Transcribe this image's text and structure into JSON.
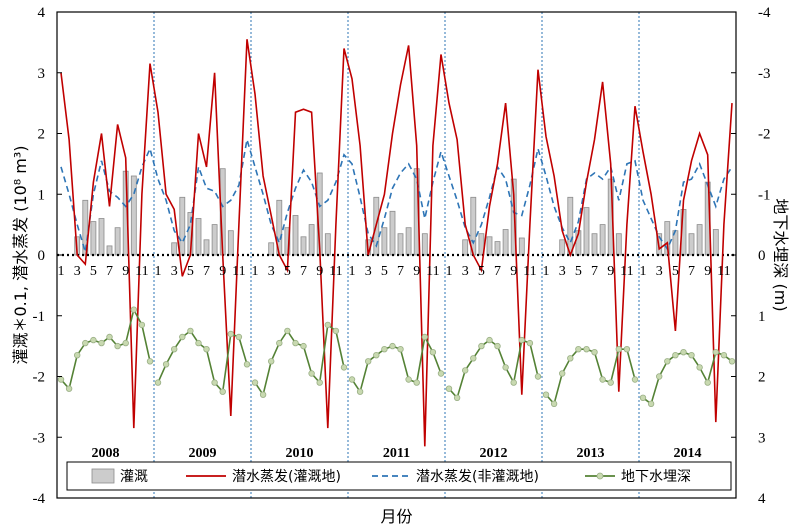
{
  "chart_data": {
    "type": "bar+line",
    "xlabel": "月份",
    "ylabel_left": "灌溉＊0.1,   潜水蒸发 (10⁸ m³)",
    "ylabel_right": "地下水埋深 (m)",
    "ylim_left": [
      -4,
      4
    ],
    "ylim_right": [
      4,
      -4
    ],
    "left_ticks": [
      "4",
      "3",
      "2",
      "1",
      "0",
      "-1",
      "-2",
      "-3",
      "-4"
    ],
    "right_ticks": [
      "-4",
      "-3",
      "-2",
      "-1",
      "0",
      "1",
      "2",
      "3",
      "4"
    ],
    "years": [
      "2008",
      "2009",
      "2010",
      "2011",
      "2012",
      "2013",
      "2014"
    ],
    "month_ticks": [
      "1",
      "3",
      "5",
      "7",
      "9",
      "11"
    ],
    "colors": {
      "irrigation": "#cccccc",
      "evap_irrigated": "#c00000",
      "evap_non_irrigated": "#2e75b6",
      "groundwater": "#548235",
      "groundwater_marker": "#c8d9b0"
    },
    "series": [
      {
        "name": "灌溉",
        "kind": "bar",
        "values": [
          [
            0,
            0,
            0.3,
            0.9,
            0.55,
            0.6,
            0.15,
            0.45,
            1.38,
            1.3,
            0,
            0
          ],
          [
            0,
            0,
            0.2,
            0.95,
            0.7,
            0.6,
            0.25,
            0.5,
            1.42,
            0.4,
            0,
            0
          ],
          [
            0,
            0,
            0.2,
            0.9,
            0.45,
            0.65,
            0.3,
            0.5,
            1.35,
            0.35,
            0,
            0
          ],
          [
            0,
            0,
            0.25,
            0.95,
            0.45,
            0.72,
            0.35,
            0.45,
            1.42,
            0.35,
            0,
            0
          ],
          [
            0,
            0,
            0.25,
            0.95,
            0.35,
            0.3,
            0.22,
            0.42,
            1.25,
            0.28,
            0,
            0
          ],
          [
            0,
            0,
            0.25,
            0.95,
            0.4,
            0.78,
            0.35,
            0.5,
            1.25,
            0.35,
            0,
            0
          ],
          [
            0,
            0,
            0.35,
            0.55,
            0.4,
            0.75,
            0.35,
            0.5,
            1.2,
            0.42,
            0,
            0
          ]
        ]
      },
      {
        "name": "潜水蒸发(灌溉地)",
        "kind": "line",
        "values": [
          [
            3.0,
            1.9,
            0.0,
            -0.15,
            1.2,
            2.0,
            0.8,
            2.15,
            1.6,
            -2.85,
            1.0,
            3.15
          ],
          [
            2.35,
            1.0,
            0.75,
            -0.35,
            0.0,
            2.0,
            1.45,
            3.0,
            0.0,
            -2.65,
            0.5,
            3.55
          ],
          [
            2.65,
            1.3,
            0.65,
            0.0,
            -0.25,
            2.35,
            2.4,
            2.35,
            0.1,
            -2.85,
            0.5,
            3.4
          ],
          [
            2.9,
            1.8,
            0.0,
            0.5,
            1.0,
            2.0,
            2.8,
            3.45,
            1.8,
            -3.15,
            1.8,
            3.3
          ],
          [
            2.5,
            1.9,
            0.5,
            0.0,
            -0.25,
            0.8,
            1.5,
            2.5,
            1.0,
            -2.3,
            0.5,
            3.05
          ],
          [
            1.95,
            1.3,
            0.4,
            0.0,
            0.35,
            1.2,
            1.9,
            2.85,
            1.5,
            -2.25,
            0.5,
            2.45
          ],
          [
            1.7,
            1.0,
            0.1,
            0.2,
            -1.25,
            0.9,
            1.55,
            2.0,
            1.65,
            -2.75,
            0.5,
            2.5
          ]
        ]
      },
      {
        "name": "潜水蒸发(非灌溉地)",
        "kind": "dashed-line",
        "values": [
          [
            1.45,
            1.0,
            0.5,
            0.05,
            1.0,
            1.55,
            1.05,
            0.95,
            0.8,
            1.0,
            1.45,
            1.75
          ],
          [
            1.25,
            0.9,
            0.4,
            0.2,
            0.5,
            1.45,
            1.1,
            1.05,
            0.8,
            0.9,
            1.15,
            1.9
          ],
          [
            1.45,
            1.0,
            0.5,
            0.2,
            0.7,
            1.1,
            1.4,
            1.2,
            0.8,
            0.9,
            1.2,
            1.65
          ],
          [
            1.5,
            0.95,
            0.35,
            0.15,
            0.6,
            1.1,
            1.35,
            1.5,
            1.25,
            0.6,
            1.2,
            1.7
          ],
          [
            1.3,
            0.9,
            0.45,
            0.2,
            0.5,
            0.95,
            1.45,
            1.25,
            0.7,
            0.65,
            1.15,
            1.75
          ],
          [
            1.3,
            0.8,
            0.45,
            0.2,
            0.55,
            1.25,
            1.35,
            1.25,
            1.45,
            0.9,
            1.5,
            1.55
          ],
          [
            0.9,
            0.6,
            0.3,
            0.1,
            0.4,
            1.2,
            1.25,
            1.5,
            1.15,
            0.8,
            1.25,
            1.45
          ]
        ]
      },
      {
        "name": "地下水埋深",
        "kind": "line-marker",
        "axis": "right",
        "values": [
          [
            2.05,
            2.2,
            1.65,
            1.45,
            1.4,
            1.45,
            1.35,
            1.5,
            1.45,
            0.9,
            1.15,
            1.75
          ],
          [
            2.1,
            1.8,
            1.55,
            1.35,
            1.25,
            1.45,
            1.55,
            2.1,
            2.25,
            1.3,
            1.35,
            1.8
          ],
          [
            2.1,
            2.3,
            1.75,
            1.45,
            1.25,
            1.45,
            1.5,
            1.95,
            2.1,
            1.15,
            1.25,
            1.85
          ],
          [
            2.05,
            2.25,
            1.75,
            1.65,
            1.55,
            1.5,
            1.55,
            2.05,
            2.1,
            1.35,
            1.6,
            1.95
          ],
          [
            2.2,
            2.35,
            1.9,
            1.7,
            1.5,
            1.4,
            1.5,
            1.85,
            2.1,
            1.4,
            1.45,
            2.0
          ],
          [
            2.3,
            2.45,
            1.95,
            1.7,
            1.55,
            1.55,
            1.6,
            2.05,
            2.1,
            1.55,
            1.55,
            2.05
          ],
          [
            2.35,
            2.45,
            2.0,
            1.75,
            1.65,
            1.6,
            1.65,
            1.85,
            2.1,
            1.6,
            1.65,
            1.75
          ]
        ]
      }
    ],
    "legend": [
      "灌溉",
      "潜水蒸发(灌溉地)",
      "潜水蒸发(非灌溉地)",
      "地下水埋深"
    ],
    "legend_position": "bottom",
    "grid": false
  }
}
